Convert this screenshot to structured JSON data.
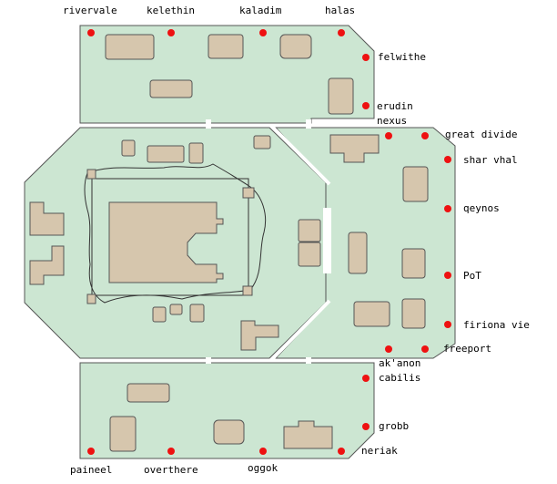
{
  "map": {
    "colors": {
      "floor": "#cce6d2",
      "building": "#d6c6ad",
      "outline": "#555555",
      "portal": "#ee1111"
    },
    "portal_labels": [
      "rivervale",
      "kelethin",
      "kaladim",
      "halas",
      "felwithe",
      "erudin",
      "nexus",
      "great divide",
      "shar vhal",
      "qeynos",
      "PoT",
      "firiona vie",
      "freeport",
      "ak'anon",
      "cabilis",
      "grobb",
      "neriak",
      "paineel",
      "overthere",
      "oggok"
    ]
  }
}
